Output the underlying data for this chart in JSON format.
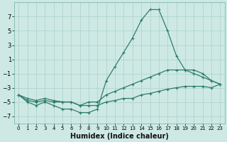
{
  "xlabel": "Humidex (Indice chaleur)",
  "background_color": "#cee9e4",
  "line_color": "#2e7d6e",
  "grid_color": "#afd4ce",
  "xlim": [
    -0.5,
    23.5
  ],
  "ylim": [
    -8,
    9
  ],
  "yticks": [
    -7,
    -5,
    -3,
    -1,
    1,
    3,
    5,
    7
  ],
  "xticks": [
    0,
    1,
    2,
    3,
    4,
    5,
    6,
    7,
    8,
    9,
    10,
    11,
    12,
    13,
    14,
    15,
    16,
    17,
    18,
    19,
    20,
    21,
    22,
    23
  ],
  "series": [
    {
      "x": [
        0,
        1,
        2,
        3,
        4,
        5,
        6,
        7,
        8,
        9,
        10,
        11,
        12,
        13,
        14,
        15,
        16,
        17,
        18,
        19,
        20,
        21,
        22,
        23
      ],
      "y": [
        -4,
        -5,
        -5.5,
        -5,
        -5.5,
        -6,
        -6,
        -6.5,
        -6.5,
        -6,
        -2,
        0,
        2,
        4,
        6.5,
        8,
        8,
        5,
        1.5,
        -0.5,
        -1.0,
        -1.5,
        -2.0,
        -2.5
      ]
    },
    {
      "x": [
        0,
        1,
        2,
        3,
        4,
        5,
        6,
        7,
        8,
        9,
        10,
        11,
        12,
        13,
        14,
        15,
        16,
        17,
        18,
        19,
        20,
        21,
        22,
        23
      ],
      "y": [
        -4,
        -4.8,
        -5,
        -4.8,
        -5,
        -5,
        -5,
        -5.5,
        -5,
        -5,
        -4,
        -3.5,
        -3,
        -2.5,
        -2,
        -1.5,
        -1,
        -0.5,
        -0.5,
        -0.5,
        -0.5,
        -1,
        -2,
        -2.5
      ]
    },
    {
      "x": [
        0,
        1,
        2,
        3,
        4,
        5,
        6,
        7,
        8,
        9,
        10,
        11,
        12,
        13,
        14,
        15,
        16,
        17,
        18,
        19,
        20,
        21,
        22,
        23
      ],
      "y": [
        -4,
        -4.5,
        -4.8,
        -4.5,
        -4.8,
        -5,
        -5,
        -5.5,
        -5.5,
        -5.5,
        -5,
        -4.8,
        -4.5,
        -4.5,
        -4,
        -3.8,
        -3.5,
        -3.2,
        -3.0,
        -2.8,
        -2.8,
        -2.8,
        -3,
        -2.5
      ]
    }
  ]
}
